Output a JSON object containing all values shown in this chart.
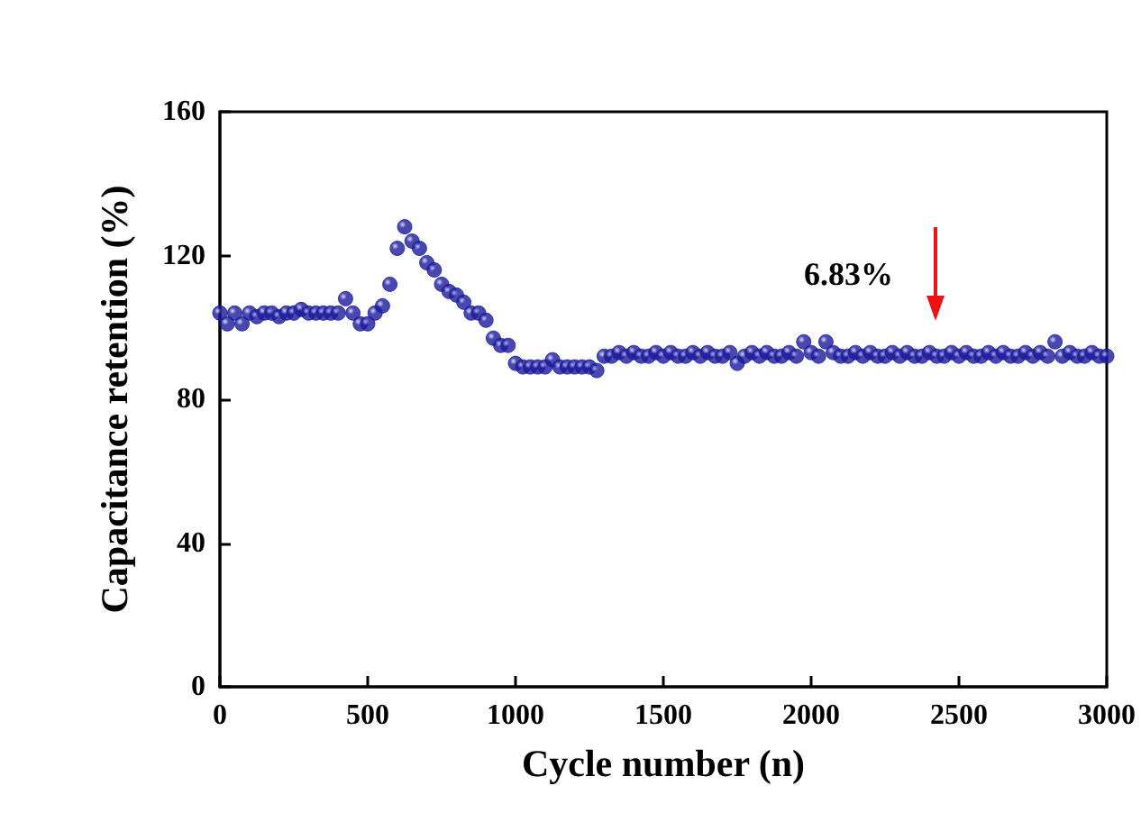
{
  "chart_data": {
    "type": "scatter",
    "xlabel": "Cycle number (n)",
    "ylabel": "Capacitance retention (%)",
    "x": [
      0,
      25,
      50,
      75,
      100,
      125,
      150,
      175,
      200,
      225,
      250,
      275,
      300,
      325,
      350,
      375,
      400,
      425,
      450,
      475,
      500,
      525,
      550,
      575,
      600,
      625,
      650,
      675,
      700,
      725,
      750,
      775,
      800,
      825,
      850,
      875,
      900,
      925,
      950,
      975,
      1000,
      1025,
      1050,
      1075,
      1100,
      1125,
      1150,
      1175,
      1200,
      1225,
      1250,
      1275,
      1300,
      1325,
      1350,
      1375,
      1400,
      1425,
      1450,
      1475,
      1500,
      1525,
      1550,
      1575,
      1600,
      1625,
      1650,
      1675,
      1700,
      1725,
      1750,
      1775,
      1800,
      1825,
      1850,
      1875,
      1900,
      1925,
      1950,
      1975,
      2000,
      2025,
      2050,
      2075,
      2100,
      2125,
      2150,
      2175,
      2200,
      2225,
      2250,
      2275,
      2300,
      2325,
      2350,
      2375,
      2400,
      2425,
      2450,
      2475,
      2500,
      2525,
      2550,
      2575,
      2600,
      2625,
      2650,
      2675,
      2700,
      2725,
      2750,
      2775,
      2800,
      2825,
      2850,
      2875,
      2900,
      2925,
      2950,
      2975,
      3000
    ],
    "series": [
      {
        "color": "#1a1a9c",
        "values": [
          104,
          101,
          104,
          101,
          104,
          103,
          104,
          104,
          103,
          104,
          104,
          105,
          104,
          104,
          104,
          104,
          104,
          108,
          104,
          101,
          101,
          104,
          106,
          112,
          122,
          128,
          124,
          122,
          118,
          116,
          112,
          110,
          109,
          107,
          104,
          104,
          102,
          97,
          95,
          95,
          90,
          89,
          89,
          89,
          89,
          91,
          89,
          89,
          89,
          89,
          89,
          88,
          92,
          92,
          93,
          92,
          93,
          92,
          92,
          93,
          92,
          93,
          92,
          92,
          93,
          92,
          93,
          92,
          92,
          93,
          90,
          92,
          93,
          92,
          93,
          92,
          92,
          93,
          92,
          96,
          93,
          92,
          96,
          93,
          92,
          92,
          93,
          92,
          93,
          92,
          92,
          93,
          92,
          93,
          92,
          92,
          93,
          92,
          92,
          93,
          92,
          93,
          92,
          92,
          93,
          92,
          93,
          92,
          92,
          93,
          92,
          93,
          92,
          96,
          92,
          93,
          92,
          92,
          93,
          92,
          92
        ]
      }
    ],
    "xlim": [
      0,
      3000
    ],
    "xticks": [
      0,
      500,
      1000,
      1500,
      2000,
      2500,
      3000
    ],
    "ylim": [
      0,
      160
    ],
    "yticks": [
      0,
      40,
      80,
      120,
      160
    ],
    "marker": "circle",
    "annotations": [
      "6.83%"
    ]
  }
}
